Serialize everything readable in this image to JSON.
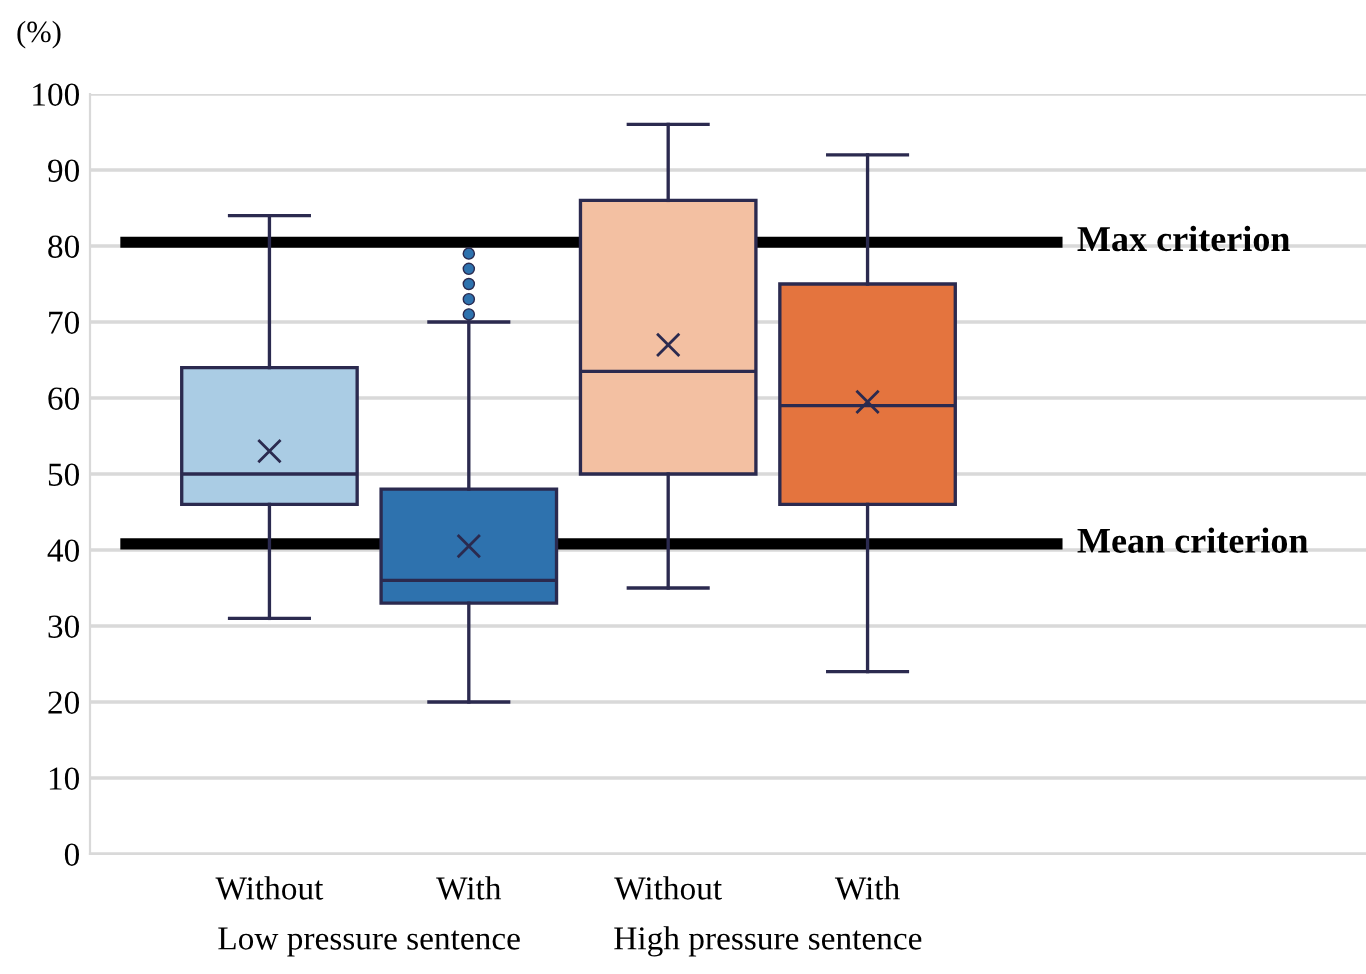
{
  "chart_data": {
    "type": "box",
    "ylabel": "(%)",
    "categories": [
      "Without",
      "With",
      "Without",
      "With"
    ],
    "colors": [
      "#aacce4",
      "#2e72ae",
      "#f3c0a2",
      "#e4743e"
    ],
    "boxes": [
      {
        "low": 31,
        "q1": 46,
        "median": 50,
        "q3": 64,
        "high": 84,
        "mean": 53
      },
      {
        "low": 20,
        "q1": 33,
        "median": 36,
        "q3": 48,
        "high": 70,
        "mean": 40.5,
        "outliers": [
          71,
          73,
          75,
          77,
          79
        ]
      },
      {
        "low": 35,
        "q1": 50,
        "median": 63.5,
        "q3": 86,
        "high": 96,
        "mean": 67
      },
      {
        "low": 24,
        "q1": 46,
        "median": 59,
        "q3": 75,
        "high": 92,
        "mean": 59.5
      }
    ],
    "ylim": [
      0,
      100
    ],
    "yticks": [
      0,
      10,
      20,
      30,
      40,
      50,
      60,
      70,
      80,
      90,
      100
    ],
    "grid": "y",
    "ref_lines": [
      {
        "axis": "y",
        "value": 80.5,
        "label": "Max criterion",
        "color": "#000000"
      },
      {
        "axis": "y",
        "value": 40.8,
        "label": "Mean criterion",
        "color": "#000000"
      }
    ],
    "annotations": [
      "Low pressure sentence",
      "High pressure sentence"
    ]
  }
}
